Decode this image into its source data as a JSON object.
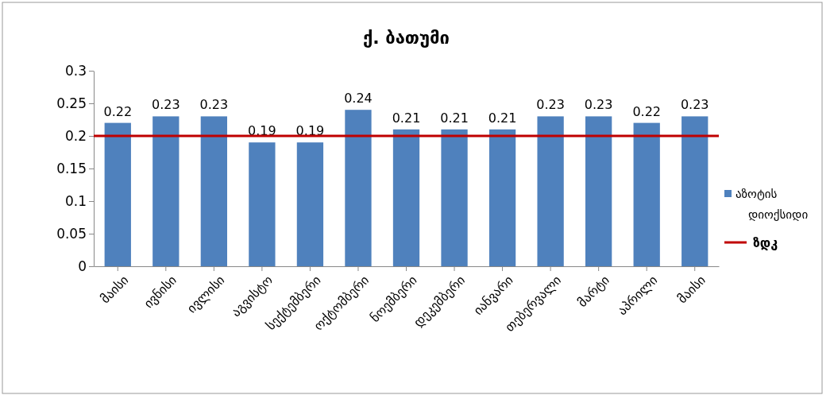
{
  "chart_data": {
    "type": "bar",
    "title": "ქ. ბათუმი",
    "categories": [
      "მაისი",
      "ივნისი",
      "ივლისი",
      "აგვისტო",
      "სექტემბერი",
      "ოქტომბერი",
      "ნოემბერი",
      "დეკემბერი",
      "იანვარი",
      "თებერვალი",
      "მარტი",
      "აპრილი",
      "მაისი"
    ],
    "series": [
      {
        "name": "აზოტის დიოქსიდი",
        "color": "#4f81bd",
        "values": [
          0.22,
          0.23,
          0.23,
          0.19,
          0.19,
          0.24,
          0.21,
          0.21,
          0.21,
          0.23,
          0.23,
          0.22,
          0.23
        ]
      }
    ],
    "ref_lines": [
      {
        "axis": "y",
        "value": 0.2,
        "label": "ზდკ",
        "color": "#c00000"
      }
    ],
    "ylim": [
      0,
      0.3
    ],
    "yticks": [
      0,
      0.05,
      0.1,
      0.15,
      0.2,
      0.25,
      0.3
    ],
    "data_labels": true,
    "legend": "right",
    "grid": false
  }
}
